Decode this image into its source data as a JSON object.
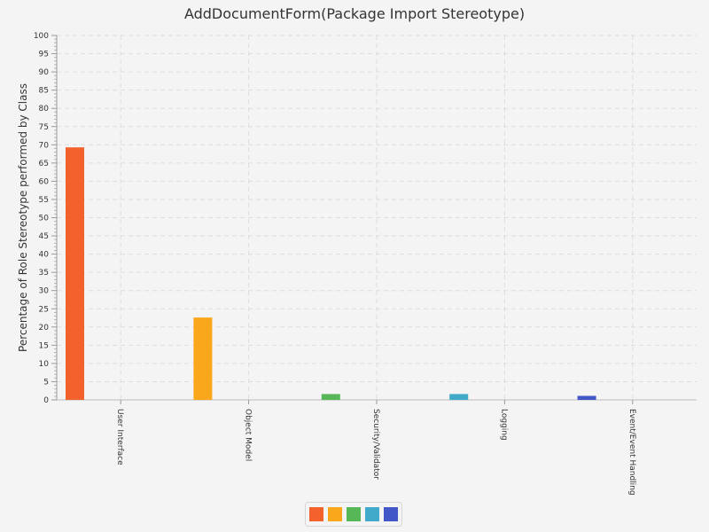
{
  "chart_data": {
    "type": "bar",
    "title": "AddDocumentForm(Package Import Stereotype)",
    "ylabel": "Percentage of Role Stereotype performed by Class",
    "xlabel": "",
    "ylim": [
      0,
      100
    ],
    "ytick_step": 5,
    "grid": true,
    "legend_position": "bottom",
    "categories": [
      "User Interface",
      "Object Model",
      "Security/Validator",
      "Logging",
      "Event/Event Handling"
    ],
    "values": [
      69.3,
      22.6,
      1.6,
      1.6,
      1.1
    ],
    "colors": [
      "#f3622d",
      "#fba71b",
      "#57b757",
      "#41a9c9",
      "#4258c9"
    ]
  }
}
